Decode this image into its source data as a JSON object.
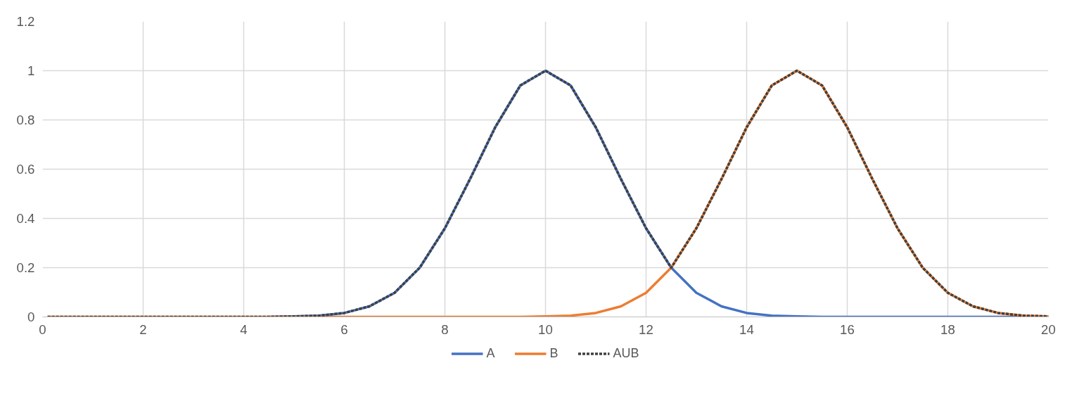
{
  "chart_data": {
    "type": "line",
    "x": [
      0.1,
      0.5,
      1,
      1.5,
      2,
      2.5,
      3,
      3.5,
      4,
      4.5,
      5,
      5.5,
      6,
      6.5,
      7,
      7.5,
      8,
      8.5,
      9,
      9.5,
      10,
      10.5,
      11,
      11.5,
      12,
      12.5,
      13,
      13.5,
      14,
      14.5,
      15,
      15.5,
      16,
      16.5,
      17,
      17.5,
      18,
      18.5,
      19,
      19.5,
      20
    ],
    "series": [
      {
        "name": "A",
        "color": "#4472c4",
        "line_style": "solid",
        "values": [
          null,
          null,
          null,
          null,
          null,
          null,
          null,
          null,
          null,
          0,
          0.002,
          0.005,
          0.016,
          0.043,
          0.098,
          0.2,
          0.36,
          0.56,
          0.77,
          0.94,
          1,
          0.94,
          0.77,
          0.56,
          0.36,
          0.2,
          0.098,
          0.043,
          0.016,
          0.005,
          0.002,
          0,
          0,
          0,
          0,
          0,
          0,
          0,
          0,
          0,
          0
        ]
      },
      {
        "name": "B",
        "color": "#ed7d31",
        "line_style": "solid",
        "values": [
          0,
          0,
          0,
          0,
          0,
          0,
          0,
          0,
          0,
          0,
          0,
          0,
          0,
          0,
          0,
          0,
          0,
          0,
          0,
          0,
          0.002,
          0.005,
          0.016,
          0.043,
          0.098,
          0.2,
          0.36,
          0.56,
          0.77,
          0.94,
          1,
          0.94,
          0.77,
          0.56,
          0.36,
          0.2,
          0.098,
          0.043,
          0.016,
          0.005,
          0.002
        ]
      },
      {
        "name": "AUB",
        "color": "#404040",
        "line_style": "dashed",
        "values": [
          0,
          0,
          0,
          0,
          0,
          0,
          0,
          0,
          0,
          0,
          0.002,
          0.005,
          0.016,
          0.043,
          0.098,
          0.2,
          0.36,
          0.56,
          0.77,
          0.94,
          1,
          0.94,
          0.77,
          0.56,
          0.36,
          0.2,
          0.36,
          0.56,
          0.77,
          0.94,
          1,
          0.94,
          0.77,
          0.56,
          0.36,
          0.2,
          0.098,
          0.043,
          0.016,
          0.005,
          0.002
        ]
      }
    ],
    "xlim": [
      0,
      20
    ],
    "xticks": [
      0,
      2,
      4,
      6,
      8,
      10,
      12,
      14,
      16,
      18,
      20
    ],
    "ylim": [
      0,
      1.2
    ],
    "yticks": [
      0,
      0.2,
      0.4,
      0.6,
      0.8,
      1,
      1.2
    ],
    "grid": true,
    "legend": "bottom",
    "marker": "none"
  }
}
